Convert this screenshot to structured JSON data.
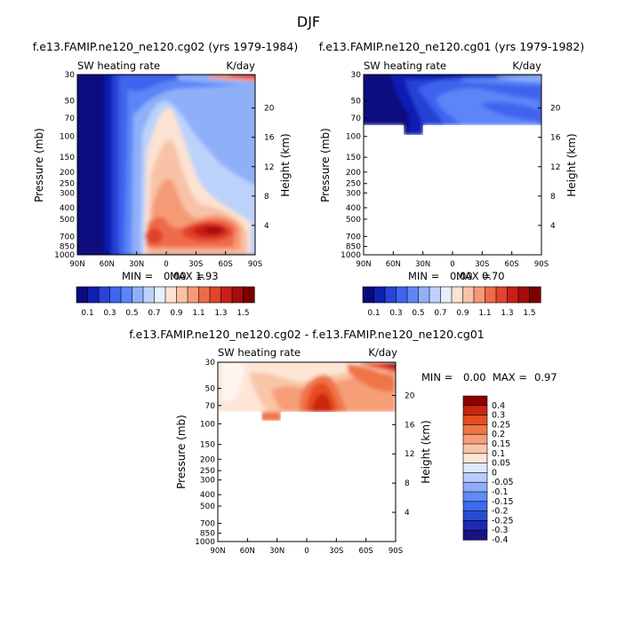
{
  "figure": {
    "season": "DJF",
    "colors": {
      "heating_scale": [
        "#0a0a7f",
        "#0f1fb2",
        "#2843d6",
        "#3f64ee",
        "#5c86f7",
        "#8fb0f9",
        "#bcd2fb",
        "#e7eefc",
        "#fbe2d2",
        "#f8c2a6",
        "#f59a77",
        "#ef6a48",
        "#e2432c",
        "#c81f18",
        "#a30c0e",
        "#7a0000"
      ],
      "diff_scale": [
        "#1a1280",
        "#1c2bb0",
        "#2a4ad2",
        "#3d6af0",
        "#5f8bf8",
        "#8eacf9",
        "#b9ccfb",
        "#dfe8fd",
        "#fde6d6",
        "#f9c5a6",
        "#f59e78",
        "#ef7548",
        "#e64c22",
        "#c8260f",
        "#8e0000"
      ]
    }
  },
  "chart_data": [
    {
      "type": "heatmap",
      "id": "cg02",
      "title": "f.e13.FAMIP.ne120_ne120.cg02 (yrs 1979-1984)",
      "left_label": "SW heating rate",
      "right_label": "K/day",
      "xlabel": "",
      "ylabel": "Pressure (mb)",
      "y2label": "Height (km)",
      "x_ticks": [
        "90N",
        "60N",
        "30N",
        "0",
        "30S",
        "60S",
        "90S"
      ],
      "y_ticks": [
        30,
        50,
        70,
        100,
        150,
        200,
        250,
        300,
        400,
        500,
        700,
        850,
        1000
      ],
      "height_ticks": [
        20,
        16,
        12,
        8,
        4
      ],
      "ylim": [
        30,
        1000
      ],
      "min": 0.0,
      "max": 1.93,
      "min_label": "MIN =",
      "min_value": "0.00",
      "max_label": "MAX =",
      "max_value": "1.93",
      "colorbar_labels": [
        "0.1",
        "0.3",
        "0.5",
        "0.7",
        "0.9",
        "1.1",
        "1.3",
        "1.5"
      ],
      "colorbar_levels": [
        0.1,
        0.2,
        0.3,
        0.4,
        0.5,
        0.6,
        0.7,
        0.8,
        0.9,
        1.0,
        1.1,
        1.2,
        1.3,
        1.4,
        1.5
      ]
    },
    {
      "type": "heatmap",
      "id": "cg01",
      "title": "f.e13.FAMIP.ne120_ne120.cg01 (yrs 1979-1982)",
      "left_label": "SW heating rate",
      "right_label": "K/day",
      "xlabel": "",
      "ylabel": "Pressure (mb)",
      "y2label": "Height (km)",
      "x_ticks": [
        "90N",
        "60N",
        "30N",
        "0",
        "30S",
        "60S",
        "90S"
      ],
      "y_ticks": [
        30,
        50,
        70,
        100,
        150,
        200,
        250,
        300,
        400,
        500,
        700,
        850,
        1000
      ],
      "height_ticks": [
        20,
        16,
        12,
        8,
        4
      ],
      "ylim": [
        30,
        1000
      ],
      "min": 0.0,
      "max": 0.7,
      "min_label": "MIN =",
      "min_value": "0.00",
      "max_label": "MAX =",
      "max_value": "0.70",
      "colorbar_labels": [
        "0.1",
        "0.3",
        "0.5",
        "0.7",
        "0.9",
        "1.1",
        "1.3",
        "1.5"
      ]
    },
    {
      "type": "heatmap",
      "id": "diff",
      "title": "f.e13.FAMIP.ne120_ne120.cg02 - f.e13.FAMIP.ne120_ne120.cg01",
      "left_label": "SW heating rate",
      "right_label": "K/day",
      "xlabel": "",
      "ylabel": "Pressure (mb)",
      "y2label": "Height (km)",
      "x_ticks": [
        "90N",
        "60N",
        "30N",
        "0",
        "30S",
        "60S",
        "90S"
      ],
      "y_ticks": [
        30,
        50,
        70,
        100,
        150,
        200,
        250,
        300,
        400,
        500,
        700,
        850,
        1000
      ],
      "height_ticks": [
        20,
        16,
        12,
        8,
        4
      ],
      "ylim": [
        30,
        1000
      ],
      "min": 0.0,
      "max": 0.97,
      "min_label": "MIN =",
      "min_value": "0.00",
      "max_label": "MAX =",
      "max_value": "0.97",
      "colorbar_labels": [
        "0.4",
        "0.3",
        "0.25",
        "0.2",
        "0.15",
        "0.1",
        "0.05",
        "0",
        "-0.05",
        "-0.1",
        "-0.15",
        "-0.2",
        "-0.25",
        "-0.3",
        "-0.4"
      ]
    }
  ]
}
